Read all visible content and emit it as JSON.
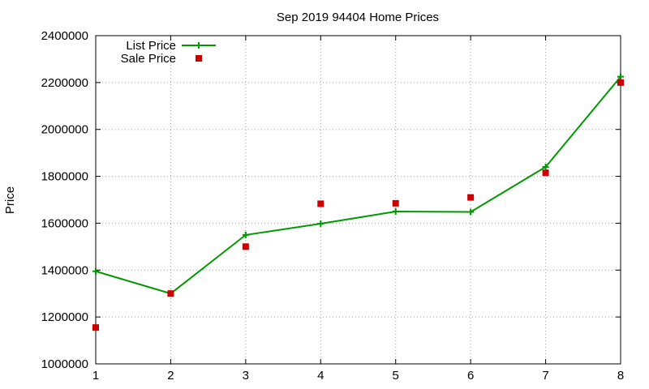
{
  "chart_data": {
    "type": "line",
    "title": "Sep 2019 94404 Home Prices",
    "xlabel": "",
    "ylabel": "Price",
    "xlim": [
      1,
      8
    ],
    "ylim": [
      1000000,
      2400000
    ],
    "x_ticks": [
      "1",
      "2",
      "3",
      "4",
      "5",
      "6",
      "7",
      "8"
    ],
    "y_ticks": [
      "1000000",
      "1200000",
      "1400000",
      "1600000",
      "1800000",
      "2000000",
      "2200000",
      "2400000"
    ],
    "grid": true,
    "legend_position": "top-left",
    "series": [
      {
        "name": "List Price",
        "kind": "line-with-plus-markers",
        "color": "#009900",
        "x": [
          1,
          2,
          3,
          4,
          5,
          6,
          7,
          8
        ],
        "values": [
          1395000,
          1300000,
          1550000,
          1598000,
          1650000,
          1648000,
          1840000,
          2225000
        ]
      },
      {
        "name": "Sale Price",
        "kind": "square-markers",
        "color": "#cc0000",
        "x": [
          1,
          2,
          3,
          4,
          5,
          6,
          7,
          8
        ],
        "values": [
          1155000,
          1300000,
          1500000,
          1683000,
          1685000,
          1710000,
          1815000,
          2200000
        ]
      }
    ]
  }
}
